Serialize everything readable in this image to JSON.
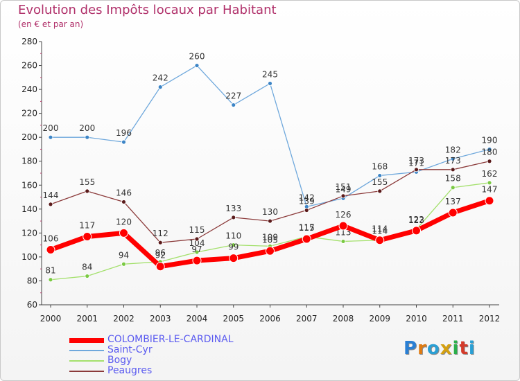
{
  "header": {
    "title": "Evolution des Impôts locaux par Habitant",
    "subtitle": "(en € et par an)"
  },
  "brand": {
    "letters": [
      "P",
      "r",
      "o",
      "x",
      "i",
      "t",
      "i"
    ],
    "colors": [
      "#2a7fd4",
      "#e07b10",
      "#2a9fd4",
      "#d4a010",
      "#2aaf4a",
      "#d43a2a",
      "#2a9fd4"
    ]
  },
  "colors": {
    "title": "#b0306a",
    "legend_text": "#5a5af0",
    "axis": "#444444"
  },
  "chart_data": {
    "type": "line",
    "title": "Evolution des Impôts locaux par Habitant",
    "subtitle": "(en € et par an)",
    "xlabel": "",
    "ylabel": "",
    "x": [
      "2000",
      "2001",
      "2002",
      "2003",
      "2004",
      "2005",
      "2006",
      "2007",
      "2008",
      "2009",
      "2010",
      "2011",
      "2012"
    ],
    "ylim": [
      60,
      280
    ],
    "yticks": [
      60,
      80,
      100,
      120,
      140,
      160,
      180,
      200,
      220,
      240,
      260,
      280
    ],
    "series": [
      {
        "name": "Saint-Cyr",
        "color": "#6fa8dc",
        "marker": "#3d85c6",
        "values": [
          200,
          200,
          196,
          242,
          260,
          227,
          245,
          142,
          149,
          168,
          171,
          182,
          190
        ],
        "labels": [
          "200",
          "200",
          "196",
          "242",
          "260",
          "227",
          "245",
          "142",
          "149",
          "168",
          "171",
          "182",
          "190"
        ]
      },
      {
        "name": "Bogy",
        "color": "#a3e06b",
        "marker": "#7ac943",
        "values": [
          81,
          84,
          94,
          96,
          104,
          110,
          109,
          117,
          113,
          114,
          123,
          158,
          162
        ],
        "labels": [
          "81",
          "84",
          "94",
          "96",
          "104",
          "110",
          "109",
          "117",
          "113",
          "114",
          "123",
          "158",
          "162"
        ]
      },
      {
        "name": "Peaugres",
        "color": "#8b3a3a",
        "marker": "#5a1a1a",
        "values": [
          144,
          155,
          146,
          112,
          115,
          133,
          130,
          139,
          151,
          155,
          173,
          173,
          180
        ],
        "labels": [
          "144",
          "155",
          "146",
          "112",
          "115",
          "133",
          "130",
          "139",
          "151",
          "155",
          "173",
          "173",
          "180"
        ]
      },
      {
        "name": "COLOMBIER-LE-CARDINAL",
        "color": "#ff0000",
        "marker": "#ff0000",
        "values": [
          106,
          117,
          120,
          92,
          97,
          99,
          105,
          115,
          126,
          114,
          122,
          137,
          147
        ],
        "labels": [
          "106",
          "117",
          "120",
          "92",
          "97",
          "99",
          "105",
          "115",
          "126",
          "114",
          "122",
          "137",
          "147"
        ]
      }
    ],
    "legend_order": [
      "COLOMBIER-LE-CARDINAL",
      "Saint-Cyr",
      "Bogy",
      "Peaugres"
    ],
    "legend_position": "bottom-left",
    "grid": false
  }
}
